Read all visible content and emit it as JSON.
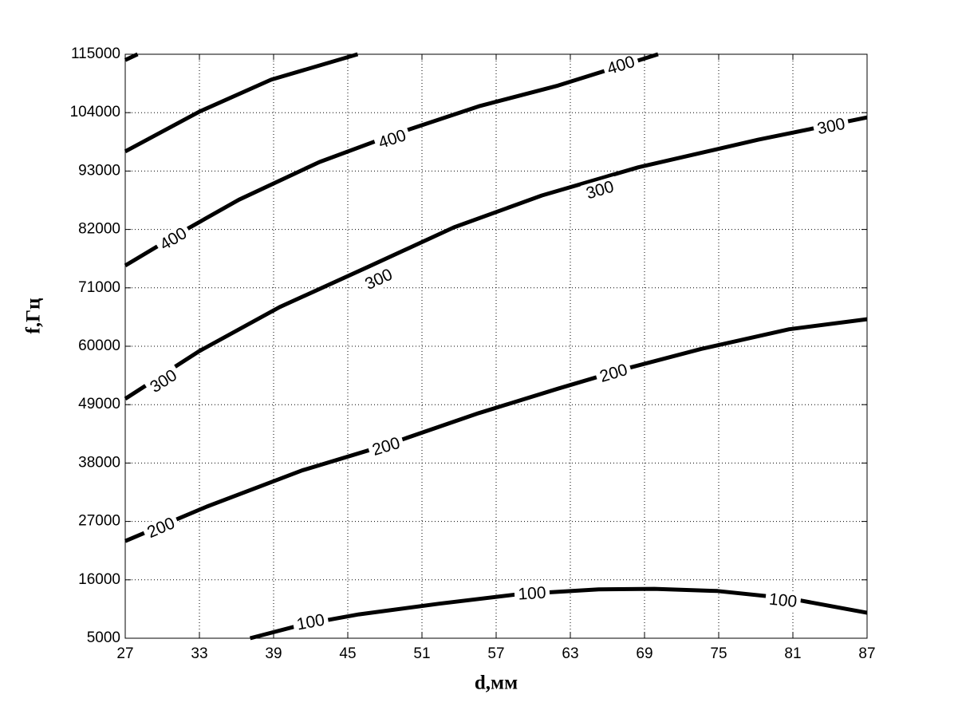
{
  "chart_data": {
    "type": "contour",
    "xlabel": "d,мм",
    "ylabel": "f,Гц",
    "xlim": [
      27,
      87
    ],
    "ylim": [
      5000,
      115000
    ],
    "xticks": [
      27,
      33,
      39,
      45,
      51,
      57,
      63,
      69,
      75,
      81,
      87
    ],
    "yticks": [
      5000,
      16000,
      27000,
      38000,
      49000,
      60000,
      71000,
      82000,
      93000,
      104000,
      115000
    ],
    "grid": true,
    "color": "#000000",
    "series": [
      {
        "x": [
          27,
          28
        ],
        "values": [
          113900,
          115000
        ]
      },
      {
        "x": [
          27,
          33,
          38.8,
          45.8
        ],
        "values": [
          96700,
          104200,
          110200,
          115000
        ]
      },
      {
        "level": 400,
        "x": [
          27,
          31.1,
          36.2,
          42.7,
          48.5,
          55.6,
          62.0,
          70.1
        ],
        "values": [
          75200,
          80900,
          87600,
          94700,
          99700,
          105200,
          109100,
          115000
        ],
        "label_x": [
          30.9,
          48.6,
          67.1
        ],
        "label_y": [
          80200,
          99000,
          112900
        ]
      },
      {
        "level": 300,
        "x": [
          27,
          33,
          39.5,
          46.6,
          53.6,
          60.7,
          68.5,
          78.2,
          87
        ],
        "values": [
          50100,
          59100,
          67400,
          74900,
          82400,
          88400,
          93700,
          98900,
          103100
        ],
        "label_x": [
          30.1,
          47.5,
          65.4,
          84.1
        ],
        "label_y": [
          53400,
          72600,
          89400,
          101400
        ]
      },
      {
        "level": 200,
        "x": [
          27,
          33.6,
          41.3,
          48.1,
          55.6,
          62.0,
          67.2,
          73.6,
          80.7,
          87
        ],
        "values": [
          23300,
          29800,
          36600,
          41400,
          47400,
          52000,
          55600,
          59500,
          63200,
          65100
        ],
        "label_x": [
          29.9,
          48.1,
          66.5
        ],
        "label_y": [
          25800,
          41100,
          54900
        ]
      },
      {
        "level": 100,
        "x": [
          37.1,
          41.4,
          45.9,
          52.4,
          58.8,
          65.3,
          69.8,
          74.9,
          80.7,
          87
        ],
        "values": [
          5000,
          7600,
          9500,
          11500,
          13300,
          14200,
          14300,
          13900,
          12500,
          9800
        ],
        "label_x": [
          42.0,
          59.9,
          80.2
        ],
        "label_y": [
          8000,
          13400,
          12100
        ]
      }
    ]
  }
}
